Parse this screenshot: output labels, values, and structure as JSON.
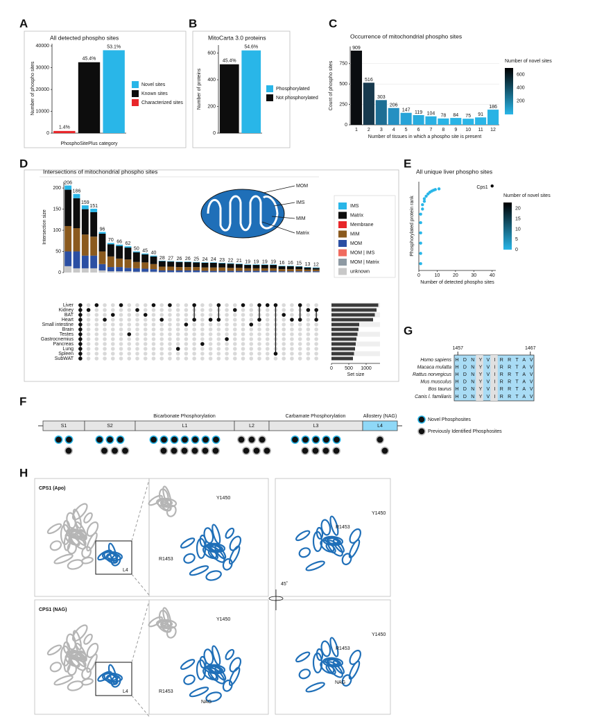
{
  "panel_labels": [
    "A",
    "B",
    "C",
    "D",
    "E",
    "F",
    "G",
    "H"
  ],
  "chart_data": [
    {
      "type": "bar_series",
      "title": "All detected phospho sites",
      "x_label": "PhosphoSitePlus category",
      "y_label": "Number of phospho sites",
      "ylim": [
        0,
        41000
      ],
      "yticks": [
        0,
        10000,
        20000,
        30000,
        40000
      ],
      "series": [
        {
          "name": "Novel sites",
          "color": "#29b6e8",
          "values": [
            38000
          ],
          "label": "53.1%"
        },
        {
          "name": "Known sites",
          "color": "#0d0d0d",
          "values": [
            32500
          ],
          "label": "45.4%"
        },
        {
          "name": "Characterized sites",
          "color": "#e8262a",
          "values": [
            1000
          ],
          "label": "1.4%"
        }
      ]
    },
    {
      "type": "bar_series",
      "title": "MitoCarta 3.0 proteins",
      "y_label": "Number of proteins",
      "ylim": [
        0,
        660
      ],
      "yticks": [
        0,
        200,
        400,
        600
      ],
      "series": [
        {
          "name": "Phosphorylated",
          "color": "#29b6e8",
          "values": [
            620
          ],
          "label": "54.6%"
        },
        {
          "name": "Not phosphorylated",
          "color": "#0d0d0d",
          "values": [
            516
          ],
          "label": "45.4%"
        }
      ]
    },
    {
      "type": "bar",
      "title": "Occurrence of mitochondrial phospho sites",
      "x_label": "Number of tissues in which a phospho site is present",
      "y_label": "Count of phospho sites",
      "categories": [
        "1",
        "2",
        "3",
        "4",
        "5",
        "6",
        "7",
        "8",
        "9",
        "10",
        "11",
        "12"
      ],
      "values": [
        909,
        516,
        303,
        206,
        147,
        119,
        104,
        78,
        84,
        75,
        91,
        186
      ],
      "colors": [
        "#0a0d10",
        "#17394d",
        "#1e6e94",
        "#2590c2",
        "#27a3d8",
        "#28acdf",
        "#29b0e3",
        "#29b4e6",
        "#29b4e6",
        "#29b5e7",
        "#29b5e7",
        "#29b3e5"
      ],
      "ylim": [
        0,
        960
      ],
      "yticks": [
        0,
        250,
        500,
        750
      ],
      "colorbar": {
        "title": "Number of novel sites",
        "lim": [
          0,
          700
        ],
        "ticks": [
          200,
          400,
          600
        ],
        "colors": [
          "#29b6e8",
          "#000000"
        ]
      }
    },
    {
      "type": "stacked_bar",
      "title": "Intersections of mitochondrial phospho sites",
      "y_label": "Intersection size",
      "ylim": [
        0,
        215
      ],
      "yticks": [
        0,
        50,
        100,
        150,
        200
      ],
      "totals": [
        206,
        186,
        159,
        151,
        96,
        70,
        66,
        62,
        50,
        45,
        40,
        28,
        27,
        26,
        26,
        25,
        24,
        24,
        23,
        22,
        21,
        19,
        19,
        19,
        19,
        16,
        16,
        15,
        13,
        12
      ],
      "series": [
        {
          "name": "IMS",
          "color": "#29b6e8",
          "values": [
            10,
            10,
            9,
            8,
            4,
            3,
            3,
            3,
            2,
            2,
            2,
            1,
            1,
            1,
            1,
            1,
            1,
            1,
            1,
            1,
            1,
            1,
            1,
            1,
            1,
            1,
            1,
            1,
            1,
            1
          ]
        },
        {
          "name": "Matrix",
          "color": "#0d0d0d",
          "values": [
            86,
            71,
            60,
            58,
            42,
            29,
            30,
            28,
            23,
            19,
            18,
            13,
            12,
            12,
            12,
            11,
            11,
            11,
            10,
            10,
            9,
            8,
            8,
            8,
            8,
            7,
            7,
            6,
            5,
            4
          ]
        },
        {
          "name": "Membrane",
          "color": "#e8262a",
          "values": [
            0,
            0,
            0,
            0,
            0,
            0,
            0,
            0,
            0,
            0,
            0,
            0,
            0,
            0,
            0,
            0,
            0,
            0,
            0,
            0,
            0,
            0,
            0,
            0,
            0,
            0,
            0,
            0,
            0,
            0
          ]
        },
        {
          "name": "MIM",
          "color": "#8b5a1e",
          "values": [
            60,
            55,
            50,
            45,
            30,
            25,
            20,
            20,
            15,
            15,
            12,
            9,
            9,
            8,
            8,
            8,
            8,
            8,
            8,
            7,
            7,
            6,
            6,
            6,
            6,
            5,
            5,
            5,
            4,
            4
          ]
        },
        {
          "name": "MOM",
          "color": "#2b4fa3",
          "values": [
            35,
            40,
            30,
            30,
            15,
            10,
            10,
            8,
            8,
            7,
            6,
            4,
            4,
            4,
            4,
            4,
            3,
            3,
            3,
            3,
            3,
            3,
            3,
            3,
            3,
            2,
            2,
            2,
            2,
            2
          ]
        },
        {
          "name": "MOM | IMS",
          "color": "#f06b5f",
          "values": [
            0,
            0,
            0,
            0,
            0,
            0,
            0,
            0,
            0,
            0,
            0,
            0,
            0,
            0,
            0,
            0,
            0,
            0,
            0,
            0,
            0,
            0,
            0,
            0,
            0,
            0,
            0,
            0,
            0,
            0
          ]
        },
        {
          "name": "MOM | Matrix",
          "color": "#8e9aa3",
          "values": [
            0,
            0,
            0,
            0,
            0,
            0,
            0,
            0,
            0,
            0,
            0,
            0,
            0,
            0,
            0,
            0,
            0,
            0,
            0,
            0,
            0,
            0,
            0,
            0,
            0,
            0,
            0,
            0,
            0,
            0
          ]
        },
        {
          "name": "unknown",
          "color": "#c8c8c8",
          "values": [
            15,
            10,
            10,
            10,
            5,
            3,
            3,
            3,
            2,
            2,
            2,
            1,
            1,
            1,
            1,
            1,
            1,
            1,
            1,
            1,
            1,
            1,
            1,
            1,
            1,
            1,
            1,
            1,
            1,
            1
          ]
        }
      ]
    },
    {
      "type": "hbar",
      "x_label": "Set size",
      "categories": [
        "Liver",
        "Kidney",
        "BAT",
        "Heart",
        "Small intestine",
        "Brain",
        "Testes",
        "Gastrocnemius",
        "Pancreas",
        "Lung",
        "Spleen",
        "SubWAT"
      ],
      "values": [
        1350,
        1300,
        1250,
        1200,
        800,
        780,
        750,
        720,
        700,
        680,
        650,
        620
      ],
      "color": "#3a3a3a",
      "xlim": [
        0,
        1400
      ],
      "xticks": [
        0,
        500,
        1000
      ],
      "combos": [
        [
          0,
          1,
          2,
          3,
          4,
          5,
          6,
          7,
          8,
          9,
          10,
          11
        ],
        [
          1
        ],
        [
          0
        ],
        [
          3
        ],
        [
          2
        ],
        [
          0
        ],
        [
          6
        ],
        [
          1
        ],
        [
          2
        ],
        [
          0
        ],
        [
          3
        ],
        [
          0
        ],
        [
          9
        ],
        [
          4
        ],
        [
          0,
          3
        ],
        [
          8
        ],
        [
          3
        ],
        [
          0,
          3
        ],
        [
          7
        ],
        [
          1
        ],
        [
          0
        ],
        [
          4
        ],
        [
          0,
          3
        ],
        [
          0
        ],
        [
          0,
          10
        ],
        [
          2
        ],
        [
          3
        ],
        [
          0,
          3
        ],
        [
          1
        ],
        [
          1,
          3
        ]
      ]
    },
    {
      "type": "scatter",
      "title": "All unique liver phospho sites",
      "x_label": "Number of detected phospho sites",
      "y_label": "Phosphorylated protein rank",
      "x": [
        1,
        1,
        1,
        1,
        1,
        1,
        2,
        2,
        3,
        3,
        4,
        5,
        6,
        7,
        8,
        9,
        11,
        40
      ],
      "y": [
        40,
        100,
        160,
        220,
        280,
        330,
        360,
        385,
        405,
        420,
        435,
        448,
        458,
        465,
        470,
        474,
        478,
        495
      ],
      "colors": [
        "#29b6e8",
        "#29b6e8",
        "#29b6e8",
        "#29b6e8",
        "#29b6e8",
        "#29b6e8",
        "#29b6e8",
        "#29b6e8",
        "#29b6e8",
        "#29b6e8",
        "#29b6e8",
        "#29b6e8",
        "#29b6e8",
        "#29b6e8",
        "#29b6e8",
        "#29b6e8",
        "#29b6e8",
        "#000000"
      ],
      "xlim": [
        0,
        42
      ],
      "ylim": [
        0,
        520
      ],
      "xticks": [
        0,
        10,
        20,
        30,
        40
      ],
      "annotation": "Cps1",
      "colorbar": {
        "title": "Number of novel sites",
        "lim": [
          0,
          23
        ],
        "ticks": [
          0,
          5,
          10,
          15,
          20
        ],
        "colors": [
          "#29b6e8",
          "#000000"
        ]
      }
    }
  ],
  "mito_diagram": {
    "labels": [
      "MOM",
      "IMS",
      "MIM",
      "Matrix"
    ]
  },
  "domain_map": {
    "sections": [
      "Bicarbonate Phosphorylation",
      "Carbamate Phosphorylation",
      "Allostery (NAG)"
    ],
    "domains": [
      {
        "name": "S1",
        "novel": 2,
        "known": 1
      },
      {
        "name": "S2",
        "novel": 3,
        "known": 3
      },
      {
        "name": "L1",
        "novel": 7,
        "known": 6
      },
      {
        "name": "L2",
        "novel": 0,
        "known": 6
      },
      {
        "name": "L3",
        "novel": 5,
        "known": 4
      },
      {
        "name": "L4",
        "novel": 0,
        "known": 2
      }
    ],
    "legend": [
      "Novel Phosphosites",
      "Previously Identified Phosphosites"
    ]
  },
  "alignment": {
    "start": 1457,
    "end": 1467,
    "species": [
      "Homo sapiens",
      "Macaca mulatta",
      "Rattus norvegicus",
      "Mus musculus",
      "Bos taurus",
      "Canis l. familiaris"
    ],
    "sequences": [
      "HDNYVIRRTAV",
      "HDNYVIRRTAV",
      "HDNYVIRRTAV",
      "HDNYVIRRTAV",
      "HDNYVIRRTAV",
      "HDNYVIRRTAV"
    ]
  },
  "structures": {
    "apo": "CPS1 (Apo)",
    "nag": "CPS1 (NAG)",
    "domain": "L4",
    "tyr": "Y1450",
    "arg": "R1453",
    "ligand": "NAG",
    "rotation": "45˚"
  }
}
